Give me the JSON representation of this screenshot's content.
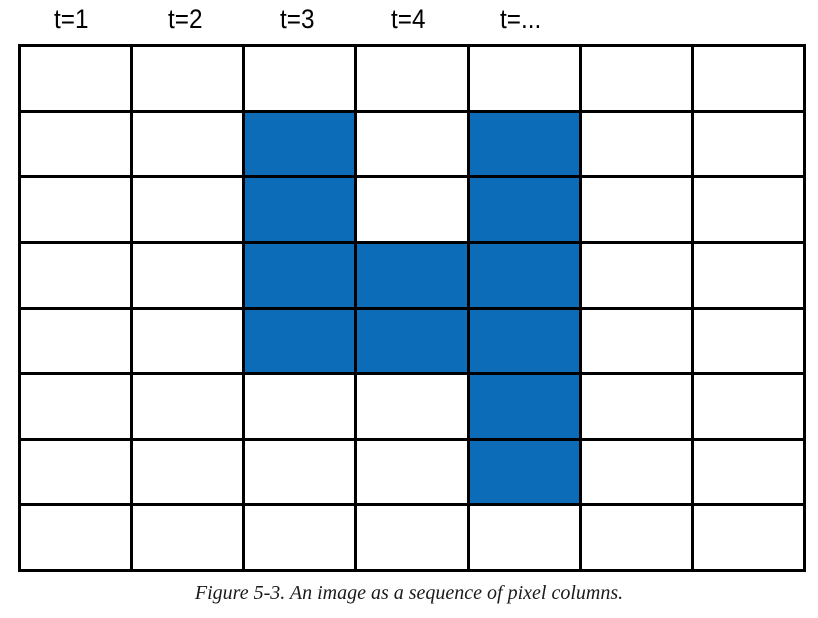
{
  "column_labels": [
    "t=1",
    "t=2",
    "t=3",
    "t=4",
    "t=..."
  ],
  "grid": {
    "rows": 8,
    "cols": 7,
    "fill_color": "#0d6cb8",
    "empty_color": "#ffffff",
    "line_color": "#000000",
    "filled": [
      [
        0,
        0,
        0,
        0,
        0,
        0,
        0
      ],
      [
        0,
        0,
        1,
        0,
        1,
        0,
        0
      ],
      [
        0,
        0,
        1,
        0,
        1,
        0,
        0
      ],
      [
        0,
        0,
        1,
        1,
        1,
        0,
        0
      ],
      [
        0,
        0,
        1,
        1,
        1,
        0,
        0
      ],
      [
        0,
        0,
        0,
        0,
        1,
        0,
        0
      ],
      [
        0,
        0,
        0,
        0,
        1,
        0,
        0
      ],
      [
        0,
        0,
        0,
        0,
        0,
        0,
        0
      ]
    ]
  },
  "caption": "Figure 5-3. An image as a sequence of pixel columns."
}
